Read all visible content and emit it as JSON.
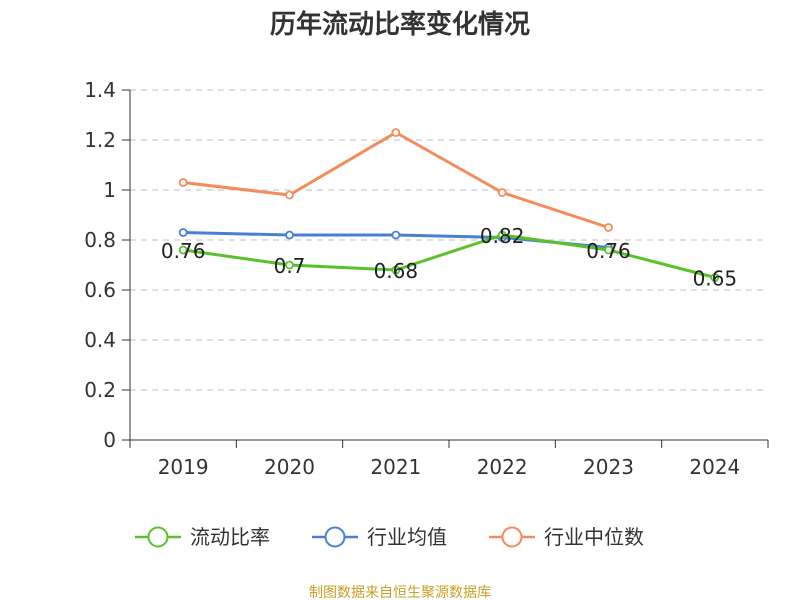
{
  "chart_data": {
    "type": "line",
    "title": "历年流动比率变化情况",
    "categories": [
      "2019",
      "2020",
      "2021",
      "2022",
      "2023",
      "2024"
    ],
    "ylim": [
      0,
      1.4
    ],
    "yticks": [
      "0",
      "0.2",
      "0.4",
      "0.6",
      "0.8",
      "1",
      "1.2",
      "1.4"
    ],
    "grid": true,
    "legend_position": "bottom",
    "series": [
      {
        "name": "流动比率",
        "color": "#5ac12b",
        "values": [
          0.76,
          0.7,
          0.68,
          0.82,
          0.76,
          0.65
        ],
        "labels": [
          "0.76",
          "0.7",
          "0.68",
          "0.82",
          "0.76",
          "0.65"
        ]
      },
      {
        "name": "行业均值",
        "color": "#4a7fd6",
        "values": [
          0.83,
          0.82,
          0.82,
          0.81,
          0.77,
          null
        ]
      },
      {
        "name": "行业中位数",
        "color": "#f58b5a",
        "values": [
          1.03,
          0.98,
          1.23,
          0.99,
          0.85,
          null
        ]
      }
    ],
    "source": "制图数据来自恒生聚源数据库",
    "source_color": "#c8a024"
  }
}
